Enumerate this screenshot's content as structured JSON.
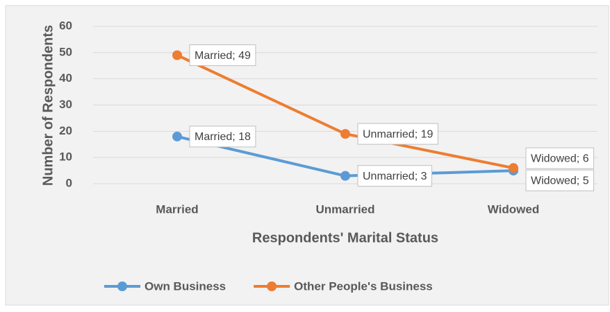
{
  "chart_data": {
    "type": "line",
    "x_label": "Respondents' Marital Status",
    "y_label": "Number of Respondents",
    "categories": [
      "Married",
      "Unmarried",
      "Widowed"
    ],
    "series": [
      {
        "name": "Own Business",
        "color": "#5b9bd5",
        "values": [
          18,
          3,
          5
        ],
        "value_labels": [
          "Married; 18",
          "Unmarried; 3",
          "Widowed; 5"
        ]
      },
      {
        "name": "Other People's Business",
        "color": "#ed7d31",
        "values": [
          49,
          19,
          6
        ],
        "value_labels": [
          "Married; 49",
          "Unmarried; 19",
          "Widowed; 6"
        ]
      }
    ],
    "ylim": [
      0,
      60
    ],
    "yticks": [
      0,
      10,
      20,
      30,
      40,
      50,
      60
    ],
    "grid": true,
    "legend": "bottom"
  }
}
